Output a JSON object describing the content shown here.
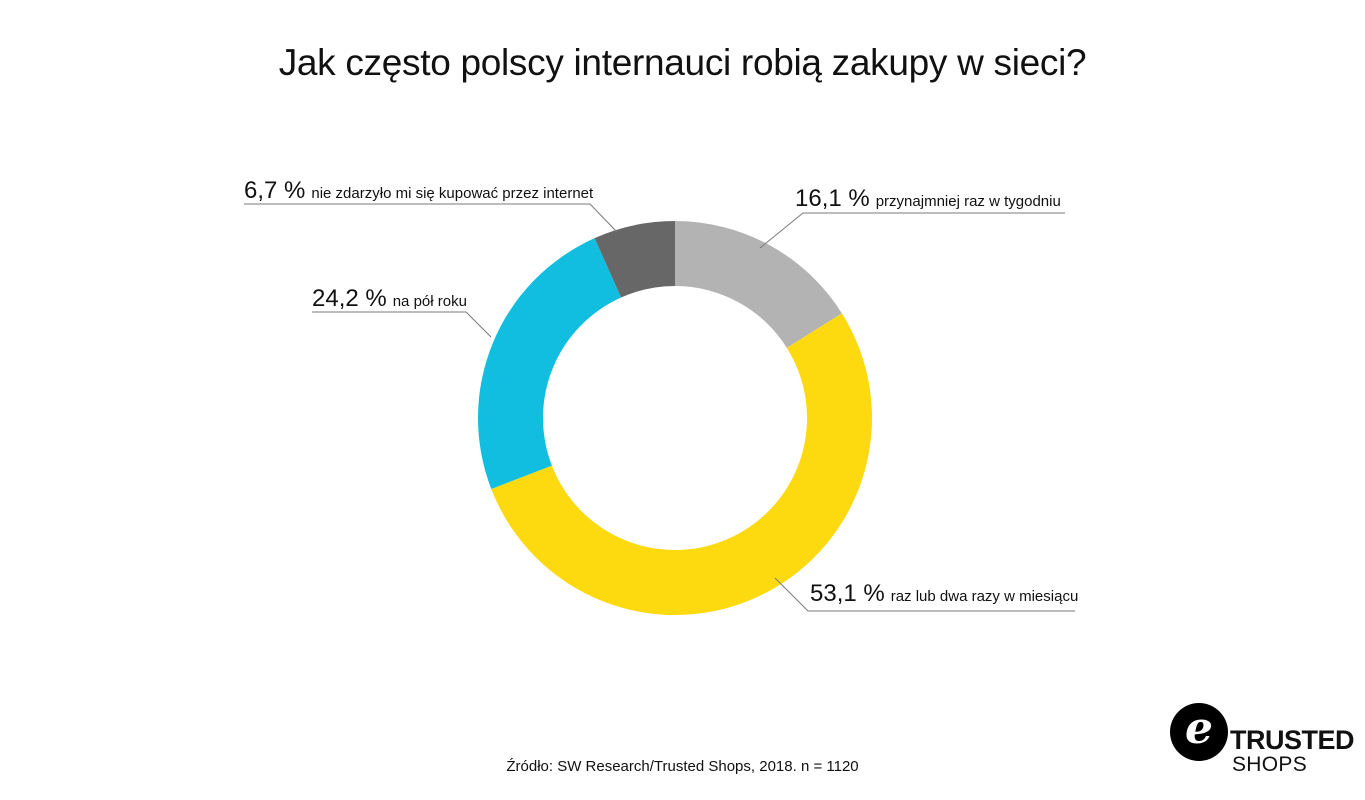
{
  "title": "Jak często polscy internauci robią zakupy w sieci?",
  "chart_data": {
    "type": "pie",
    "donut": true,
    "title": "Jak często polscy internauci robią zakupy w sieci?",
    "series": [
      {
        "name": "przynajmniej raz w tygodniu",
        "value": 16.1,
        "value_label": "16,1 %",
        "color": "#b3b3b3"
      },
      {
        "name": "raz lub dwa razy w miesiącu",
        "value": 53.1,
        "value_label": "53,1 %",
        "color": "#fdd910"
      },
      {
        "name": "na pół roku",
        "value": 24.2,
        "value_label": "24,2 %",
        "color": "#11bedf"
      },
      {
        "name": "nie zdarzyło mi się kupować przez internet",
        "value": 6.7,
        "value_label": "6,7 %",
        "color": "#676767"
      }
    ]
  },
  "source": "Źródło: SW Research/Trusted Shops, 2018. n = 1120",
  "logo": {
    "mark": "e",
    "line1": "TRUSTED",
    "line2": "SHOPS"
  }
}
